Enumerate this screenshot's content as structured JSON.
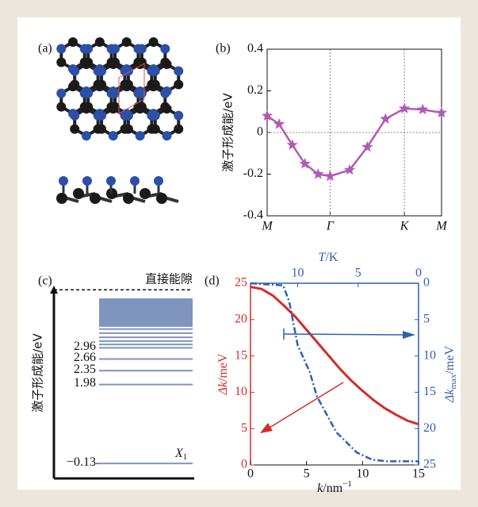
{
  "panel_a": {
    "label": "(a)"
  },
  "chart_data": [
    {
      "type": "line",
      "label": "(b)",
      "ylabel": "激子形成能/eV",
      "color": "#b05ab8",
      "marker": "star",
      "x": [
        0,
        0.19,
        0.4,
        0.6,
        0.81,
        1,
        1.31,
        1.59,
        1.88,
        2.18,
        2.47,
        2.77
      ],
      "values": [
        0.08,
        0.04,
        -0.06,
        -0.15,
        -0.2,
        -0.21,
        -0.18,
        -0.07,
        0.065,
        0.115,
        0.11,
        0.095
      ],
      "xlim": [
        0,
        2.77
      ],
      "xticks": [
        {
          "value": 0,
          "label": "M"
        },
        {
          "value": 1,
          "label": "Γ"
        },
        {
          "value": 2.18,
          "label": "K"
        },
        {
          "value": 2.77,
          "label": "M"
        }
      ],
      "ylim": [
        -0.4,
        0.4
      ],
      "yticks": [
        -0.4,
        -0.2,
        0,
        0.2,
        0.4
      ],
      "grid": true,
      "hline": 0
    },
    {
      "type": "levels",
      "label": "(c)",
      "ylabel": "激子形成能/eV",
      "color": "#7f95bf",
      "values": [
        -0.13,
        1.98,
        2.35,
        2.66,
        2.96,
        3.05,
        3.14,
        3.24,
        3.35,
        3.46
      ],
      "value_labels": [
        "−0.13",
        "1.98",
        "2.35",
        "2.66",
        "2.96",
        null,
        null,
        null,
        null,
        null
      ],
      "band": [
        3.52,
        4.28
      ],
      "gap": 4.51,
      "gap_label": "直接能隙",
      "state_label": {
        "main": "X",
        "sub": "1"
      },
      "ylim": [
        -0.53,
        4.62
      ]
    },
    {
      "type": "dual_line",
      "label": "(d)",
      "xlabel": {
        "main": "k",
        "unit": "/nm",
        "sup": "−1"
      },
      "ylabel": {
        "main": "Δk",
        "unit": "/meV"
      },
      "x2label": {
        "main": "T",
        "unit": "/K"
      },
      "y2label": {
        "main": "Δk",
        "sub": "max",
        "unit": "/meV"
      },
      "xlim": [
        0,
        15
      ],
      "xticks": [
        0,
        5,
        10,
        15
      ],
      "ylim": [
        0,
        25
      ],
      "yticks": [
        0,
        5,
        10,
        15,
        20,
        25
      ],
      "x2lim": [
        13.9,
        0
      ],
      "x2ticks": [
        10,
        5,
        0
      ],
      "y2lim": [
        25,
        0
      ],
      "y2ticks": [
        0,
        5,
        10,
        15,
        20,
        25
      ],
      "series": [
        {
          "color": "#d62b2b",
          "x": [
            0,
            1,
            2,
            3,
            4,
            5,
            6,
            7,
            8,
            9,
            10,
            11,
            12,
            13,
            14,
            15
          ],
          "values": [
            24.5,
            24.2,
            23.3,
            21.9,
            20.4,
            18.6,
            16.8,
            15.0,
            13.2,
            11.6,
            10.2,
            8.9,
            7.8,
            6.9,
            6.1,
            5.6
          ]
        },
        {
          "color": "#2f5fb5",
          "axis": "y2",
          "x": [
            13.9,
            11.2,
            10.7,
            10.0,
            9.0,
            8.4,
            6.8,
            5.1,
            3.8,
            2.5,
            0
          ],
          "values": [
            0,
            0.3,
            2.5,
            8.5,
            12.2,
            15.6,
            20.5,
            23.3,
            24.3,
            24.5,
            24.5
          ]
        }
      ]
    }
  ]
}
